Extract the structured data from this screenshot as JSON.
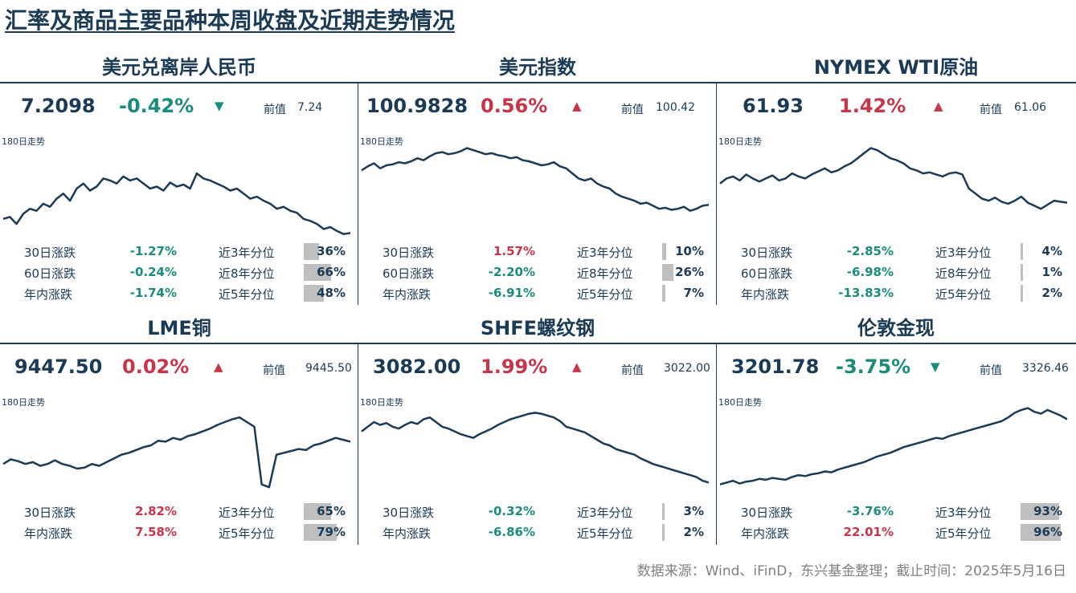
{
  "title": "汇率及商品主要品种本周收盘及近期走势情况",
  "source": "数据来源：Wind、iFinD，东兴基金整理；截止时间：2025年5月16日",
  "colors": {
    "up": "#c8344a",
    "down": "#1a8c7c",
    "line": "#1a3a55",
    "bar": "#bfbfbf"
  },
  "panels": [
    {
      "title": "美元兑离岸人民币",
      "price": "7.2098",
      "change": "-0.42%",
      "direction": "down",
      "arrow": "▼",
      "prev_label": "前值",
      "prev_value": "7.24",
      "trend_label": "180日走势",
      "stats": [
        {
          "label": "30日涨跌",
          "value": "-1.27%",
          "dir": "down",
          "pct_label": "近3年分位",
          "pct": "36%",
          "pct_num": 0.36
        },
        {
          "label": "60日涨跌",
          "value": "-0.24%",
          "dir": "down",
          "pct_label": "近8年分位",
          "pct": "66%",
          "pct_num": 0.66
        },
        {
          "label": "年内涨跌",
          "value": "-1.74%",
          "dir": "down",
          "pct_label": "近5年分位",
          "pct": "48%",
          "pct_num": 0.48
        }
      ]
    },
    {
      "title": "美元指数",
      "price": "100.9828",
      "change": "0.56%",
      "direction": "up",
      "arrow": "▲",
      "prev_label": "前值",
      "prev_value": "100.42",
      "trend_label": "180日走势",
      "stats": [
        {
          "label": "30日涨跌",
          "value": "1.57%",
          "dir": "up",
          "pct_label": "近3年分位",
          "pct": "10%",
          "pct_num": 0.1
        },
        {
          "label": "60日涨跌",
          "value": "-2.20%",
          "dir": "down",
          "pct_label": "近8年分位",
          "pct": "26%",
          "pct_num": 0.26
        },
        {
          "label": "年内涨跌",
          "value": "-6.91%",
          "dir": "down",
          "pct_label": "近5年分位",
          "pct": "7%",
          "pct_num": 0.07
        }
      ]
    },
    {
      "title": "NYMEX WTI原油",
      "price": "61.93",
      "change": "1.42%",
      "direction": "up",
      "arrow": "▲",
      "prev_label": "前值",
      "prev_value": "61.06",
      "trend_label": "180日走势",
      "stats": [
        {
          "label": "30日涨跌",
          "value": "-2.85%",
          "dir": "down",
          "pct_label": "近3年分位",
          "pct": "4%",
          "pct_num": 0.04
        },
        {
          "label": "60日涨跌",
          "value": "-6.98%",
          "dir": "down",
          "pct_label": "近8年分位",
          "pct": "1%",
          "pct_num": 0.01
        },
        {
          "label": "年内涨跌",
          "value": "-13.83%",
          "dir": "down",
          "pct_label": "近5年分位",
          "pct": "2%",
          "pct_num": 0.02
        }
      ]
    },
    {
      "title": "LME铜",
      "price": "9447.50",
      "change": "0.02%",
      "direction": "up",
      "arrow": "▲",
      "prev_label": "前值",
      "prev_value": "9445.50",
      "trend_label": "180日走势",
      "stats": [
        {
          "label": "30日涨跌",
          "value": "2.82%",
          "dir": "up",
          "pct_label": "近3年分位",
          "pct": "65%",
          "pct_num": 0.65
        },
        {
          "label": "年内涨跌",
          "value": "7.58%",
          "dir": "up",
          "pct_label": "近5年分位",
          "pct": "79%",
          "pct_num": 0.79
        }
      ]
    },
    {
      "title": "SHFE螺纹钢",
      "price": "3082.00",
      "change": "1.99%",
      "direction": "up",
      "arrow": "▲",
      "prev_label": "前值",
      "prev_value": "3022.00",
      "trend_label": "180日走势",
      "stats": [
        {
          "label": "30日涨跌",
          "value": "-0.32%",
          "dir": "down",
          "pct_label": "近3年分位",
          "pct": "3%",
          "pct_num": 0.03
        },
        {
          "label": "年内涨跌",
          "value": "-6.86%",
          "dir": "down",
          "pct_label": "近5年分位",
          "pct": "2%",
          "pct_num": 0.02
        }
      ]
    },
    {
      "title": "伦敦金现",
      "price": "3201.78",
      "change": "-3.75%",
      "direction": "down",
      "arrow": "▼",
      "prev_label": "前值",
      "prev_value": "3326.46",
      "trend_label": "180日走势",
      "stats": [
        {
          "label": "30日涨跌",
          "value": "-3.76%",
          "dir": "down",
          "pct_label": "近3年分位",
          "pct": "93%",
          "pct_num": 0.93
        },
        {
          "label": "年内涨跌",
          "value": "22.01%",
          "dir": "up",
          "pct_label": "近5年分位",
          "pct": "96%",
          "pct_num": 0.96
        }
      ]
    }
  ],
  "chart_data": [
    {
      "type": "line",
      "title": "美元兑离岸人民币",
      "ylim": [
        0,
        100
      ],
      "values": [
        20,
        22,
        15,
        25,
        30,
        28,
        35,
        32,
        40,
        45,
        38,
        50,
        55,
        48,
        52,
        60,
        58,
        55,
        62,
        58,
        60,
        55,
        50,
        52,
        48,
        56,
        52,
        54,
        50,
        65,
        60,
        58,
        55,
        52,
        48,
        50,
        45,
        40,
        42,
        38,
        35,
        30,
        32,
        28,
        26,
        20,
        18,
        15,
        10,
        12,
        8,
        5,
        6
      ]
    },
    {
      "type": "line",
      "title": "美元指数",
      "ylim": [
        0,
        100
      ],
      "values": [
        68,
        72,
        75,
        70,
        73,
        74,
        76,
        75,
        77,
        80,
        78,
        82,
        85,
        86,
        84,
        85,
        87,
        90,
        88,
        86,
        84,
        85,
        83,
        82,
        80,
        81,
        78,
        77,
        75,
        73,
        74,
        76,
        72,
        70,
        65,
        60,
        58,
        60,
        55,
        52,
        50,
        45,
        42,
        40,
        38,
        35,
        36,
        33,
        30,
        31,
        29,
        30,
        32,
        28,
        30,
        33,
        34
      ]
    },
    {
      "type": "line",
      "title": "NYMEX WTI原油",
      "ylim": [
        0,
        100
      ],
      "values": [
        55,
        60,
        62,
        58,
        64,
        60,
        57,
        60,
        63,
        58,
        60,
        65,
        62,
        60,
        64,
        67,
        70,
        66,
        68,
        72,
        75,
        80,
        85,
        90,
        88,
        84,
        80,
        78,
        75,
        70,
        68,
        65,
        66,
        64,
        62,
        65,
        66,
        64,
        50,
        45,
        40,
        38,
        41,
        37,
        35,
        38,
        42,
        36,
        33,
        30,
        34,
        38,
        37,
        36
      ]
    },
    {
      "type": "line",
      "title": "LME铜",
      "ylim": [
        0,
        100
      ],
      "values": [
        30,
        35,
        33,
        30,
        32,
        28,
        30,
        34,
        30,
        28,
        25,
        26,
        30,
        28,
        32,
        36,
        40,
        42,
        45,
        48,
        50,
        55,
        54,
        58,
        56,
        60,
        62,
        65,
        68,
        72,
        75,
        78,
        80,
        75,
        70,
        8,
        5,
        40,
        42,
        44,
        46,
        45,
        50,
        52,
        55,
        58,
        56,
        54
      ]
    },
    {
      "type": "line",
      "title": "SHFE螺纹钢",
      "ylim": [
        0,
        100
      ],
      "values": [
        65,
        70,
        75,
        72,
        74,
        70,
        68,
        72,
        75,
        73,
        78,
        80,
        75,
        70,
        68,
        65,
        62,
        60,
        58,
        62,
        65,
        68,
        72,
        75,
        78,
        80,
        82,
        84,
        85,
        84,
        82,
        80,
        76,
        70,
        68,
        66,
        64,
        60,
        56,
        52,
        50,
        46,
        44,
        42,
        40,
        36,
        33,
        30,
        28,
        26,
        24,
        22,
        20,
        18,
        16,
        12,
        10
      ]
    },
    {
      "type": "line",
      "title": "伦敦金现",
      "ylim": [
        0,
        100
      ],
      "values": [
        8,
        10,
        12,
        9,
        11,
        12,
        14,
        13,
        15,
        14,
        13,
        16,
        18,
        17,
        19,
        20,
        22,
        21,
        24,
        26,
        28,
        30,
        32,
        35,
        38,
        40,
        42,
        45,
        48,
        50,
        52,
        54,
        56,
        58,
        57,
        60,
        62,
        64,
        66,
        68,
        70,
        72,
        74,
        76,
        80,
        85,
        88,
        90,
        86,
        84,
        88,
        85,
        82,
        78
      ]
    }
  ]
}
